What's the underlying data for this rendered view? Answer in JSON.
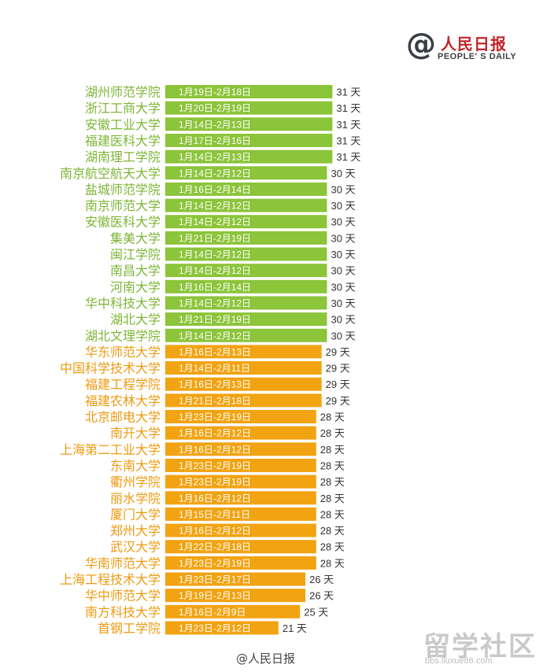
{
  "logo": {
    "symbol": "@",
    "name_cn": "人民日报",
    "name_en": "PEOPLE' S DAILY"
  },
  "colors": {
    "green": "#8cc43a",
    "orange": "#f2a312",
    "label_green": "#7db535",
    "label_orange": "#ee9a10"
  },
  "chart_data": {
    "type": "bar",
    "orientation": "horizontal",
    "title": "",
    "unit": "天",
    "categories": [
      "湖州师范学院",
      "浙江工商大学",
      "安徽工业大学",
      "福建医科大学",
      "湖南理工学院",
      "南京航空航天大学",
      "盐城师范学院",
      "南京师范大学",
      "安徽医科大学",
      "集美大学",
      "闽江学院",
      "南昌大学",
      "河南大学",
      "华中科技大学",
      "湖北大学",
      "湖北文理学院",
      "华东师范大学",
      "中国科学技术大学",
      "福建工程学院",
      "福建农林大学",
      "北京邮电大学",
      "南开大学",
      "上海第二工业大学",
      "东南大学",
      "衢州学院",
      "丽水学院",
      "厦门大学",
      "郑州大学",
      "武汉大学",
      "华南师范大学",
      "上海工程技术大学",
      "华中师范大学",
      "南方科技大学",
      "首钢工学院"
    ],
    "values": [
      31,
      31,
      31,
      31,
      31,
      30,
      30,
      30,
      30,
      30,
      30,
      30,
      30,
      30,
      30,
      30,
      29,
      29,
      29,
      29,
      28,
      28,
      28,
      28,
      28,
      28,
      28,
      28,
      28,
      28,
      26,
      26,
      25,
      21
    ],
    "ranges": [
      "1月19日-2月18日",
      "1月20日-2月19日",
      "1月14日-2月13日",
      "1月17日-2月16日",
      "1月14日-2月13日",
      "1月14日-2月12日",
      "1月16日-2月14日",
      "1月14日-2月12日",
      "1月14日-2月12日",
      "1月21日-2月19日",
      "1月14日-2月12日",
      "1月14日-2月12日",
      "1月16日-2月14日",
      "1月14日-2月12日",
      "1月21日-2月19日",
      "1月14日-2月12日",
      "1月16日-2月13日",
      "1月14日-2月11日",
      "1月16日-2月13日",
      "1月21日-2月18日",
      "1月23日-2月19日",
      "1月16日-2月12日",
      "1月16日-2月12日",
      "1月23日-2月19日",
      "1月23日-2月19日",
      "1月16日-2月12日",
      "1月15日-2月11日",
      "1月16日-2月12日",
      "1月22日-2月18日",
      "1月23日-2月19日",
      "1月23日-2月17日",
      "1月19日-2月13日",
      "1月16日-2月9日",
      "1月23日-2月12日"
    ],
    "groups": [
      "green",
      "green",
      "green",
      "green",
      "green",
      "green",
      "green",
      "green",
      "green",
      "green",
      "green",
      "green",
      "green",
      "green",
      "green",
      "green",
      "orange",
      "orange",
      "orange",
      "orange",
      "orange",
      "orange",
      "orange",
      "orange",
      "orange",
      "orange",
      "orange",
      "orange",
      "orange",
      "orange",
      "orange",
      "orange",
      "orange",
      "orange"
    ]
  },
  "credit": "@人民日报",
  "watermark": {
    "text": "留学社区",
    "url": "bbs.liuxue86.com"
  }
}
